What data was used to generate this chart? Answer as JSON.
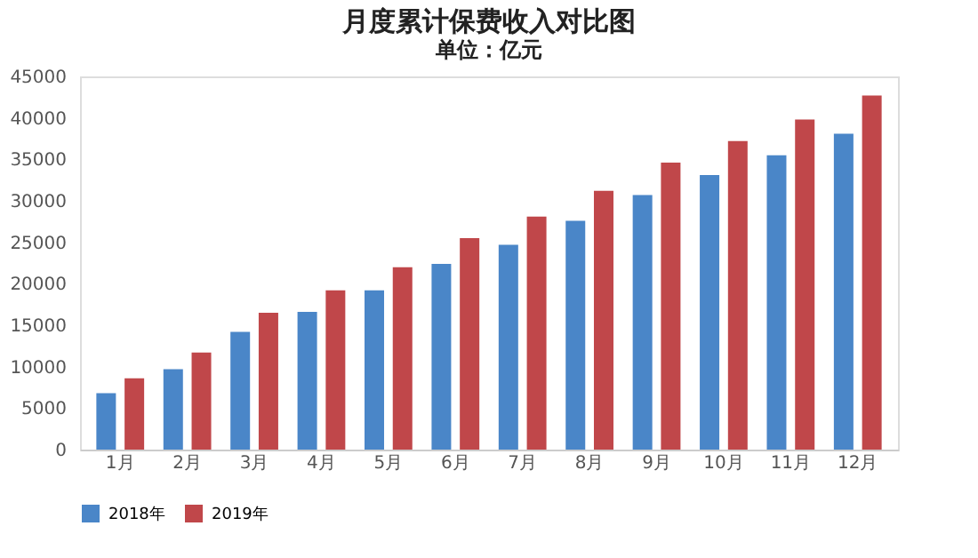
{
  "chart_data": {
    "type": "bar",
    "title": "月度累计保费收入对比图",
    "subtitle": "单位：亿元",
    "categories": [
      "1月",
      "2月",
      "3月",
      "4月",
      "5月",
      "6月",
      "7月",
      "8月",
      "9月",
      "10月",
      "11月",
      "12月"
    ],
    "series": [
      {
        "name": "2018年",
        "color": "#4a86c8",
        "values": [
          6800,
          9700,
          14200,
          16600,
          19200,
          22400,
          24700,
          27600,
          30700,
          33100,
          35500,
          38100
        ]
      },
      {
        "name": "2019年",
        "color": "#c0474a",
        "values": [
          8600,
          11700,
          16500,
          19200,
          22000,
          25500,
          28100,
          31200,
          34600,
          37200,
          39800,
          42700
        ]
      }
    ],
    "ylim": [
      0,
      45000
    ],
    "yticks": [
      0,
      5000,
      10000,
      15000,
      20000,
      25000,
      30000,
      35000,
      40000,
      45000
    ],
    "grid": false,
    "legend": "bottom"
  }
}
